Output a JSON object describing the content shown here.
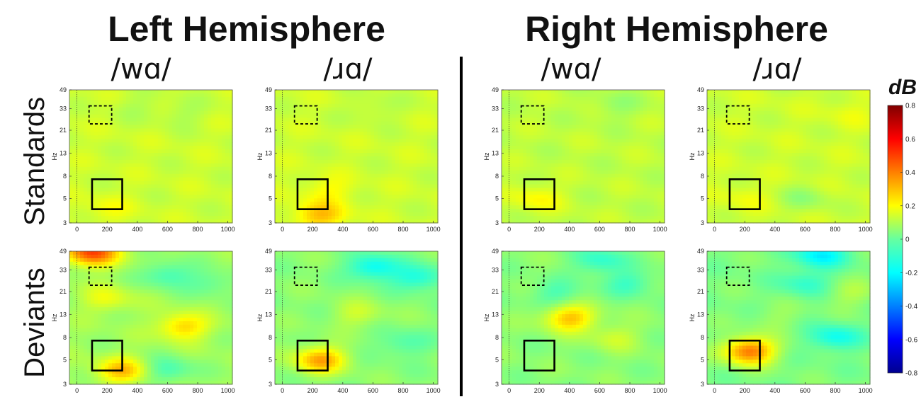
{
  "chart_data": {
    "type": "heatmap",
    "hemispheres": [
      {
        "title": "Left Hemisphere",
        "stimuli": [
          "/wɑ/",
          "/ɹɑ/"
        ]
      },
      {
        "title": "Right Hemisphere",
        "stimuli": [
          "/wɑ/",
          "/ɹɑ/"
        ]
      }
    ],
    "rows": [
      "Standards",
      "Deviants"
    ],
    "xlabel": "",
    "ylabel": "Hz",
    "x_ticks": [
      "0",
      "200",
      "400",
      "600",
      "800",
      "1000"
    ],
    "y_ticks": [
      "3",
      "5",
      "8",
      "13",
      "21",
      "33",
      "49"
    ],
    "xlim": [
      -50,
      1030
    ],
    "ylim": [
      3,
      49
    ],
    "y_scale": "log",
    "colorbar": {
      "title": "dB",
      "ticks": [
        "0.8",
        "0.6",
        "0.4",
        "0.2",
        "0",
        "-0.2",
        "-0.4",
        "-0.6",
        "-0.8"
      ],
      "range": [
        -0.8,
        0.8
      ]
    },
    "stimulus_onset_ms": 0,
    "roi_solid": {
      "x": [
        100,
        300
      ],
      "y": [
        4,
        7.5
      ]
    },
    "roi_dashed": {
      "x": [
        80,
        230
      ],
      "y": [
        24,
        35
      ]
    },
    "panels": [
      {
        "row": "Standards",
        "hemisphere": "Left Hemisphere",
        "stimulus": "/wɑ/",
        "base": 0.12,
        "blobs": [
          [
            200,
            4,
            0.06
          ],
          [
            700,
            30,
            -0.05
          ],
          [
            400,
            35,
            -0.04
          ]
        ]
      },
      {
        "row": "Standards",
        "hemisphere": "Left Hemisphere",
        "stimulus": "/ɹɑ/",
        "base": 0.12,
        "blobs": [
          [
            250,
            3.5,
            0.18
          ],
          [
            600,
            33,
            -0.05
          ],
          [
            300,
            6,
            0.08
          ]
        ]
      },
      {
        "row": "Standards",
        "hemisphere": "Right Hemisphere",
        "stimulus": "/wɑ/",
        "base": 0.1,
        "blobs": [
          [
            180,
            5,
            0.1
          ],
          [
            700,
            35,
            -0.06
          ]
        ]
      },
      {
        "row": "Standards",
        "hemisphere": "Right Hemisphere",
        "stimulus": "/ɹɑ/",
        "base": 0.12,
        "blobs": [
          [
            600,
            5,
            -0.08
          ],
          [
            200,
            5,
            0.05
          ],
          [
            900,
            30,
            0.04
          ]
        ]
      },
      {
        "row": "Deviants",
        "hemisphere": "Left Hemisphere",
        "stimulus": "/wɑ/",
        "base": 0.05,
        "blobs": [
          [
            100,
            48,
            0.45
          ],
          [
            700,
            10,
            0.22
          ],
          [
            300,
            4,
            0.25
          ],
          [
            600,
            30,
            -0.15
          ],
          [
            900,
            25,
            -0.1
          ],
          [
            200,
            18,
            0.12
          ],
          [
            600,
            4,
            -0.14
          ]
        ]
      },
      {
        "row": "Deviants",
        "hemisphere": "Left Hemisphere",
        "stimulus": "/ɹɑ/",
        "base": 0.02,
        "blobs": [
          [
            250,
            5,
            0.32
          ],
          [
            600,
            35,
            -0.22
          ],
          [
            900,
            28,
            -0.18
          ],
          [
            500,
            13,
            0.1
          ],
          [
            800,
            7,
            -0.1
          ]
        ]
      },
      {
        "row": "Deviants",
        "hemisphere": "Right Hemisphere",
        "stimulus": "/wɑ/",
        "base": 0.02,
        "blobs": [
          [
            400,
            12,
            0.28
          ],
          [
            600,
            40,
            -0.15
          ],
          [
            800,
            25,
            -0.12
          ],
          [
            300,
            20,
            -0.1
          ],
          [
            700,
            8,
            0.1
          ]
        ]
      },
      {
        "row": "Deviants",
        "hemisphere": "Right Hemisphere",
        "stimulus": "/ɹɑ/",
        "base": 0.0,
        "blobs": [
          [
            230,
            6,
            0.42
          ],
          [
            700,
            45,
            -0.22
          ],
          [
            800,
            8,
            -0.18
          ],
          [
            600,
            25,
            -0.12
          ],
          [
            900,
            20,
            0.08
          ],
          [
            400,
            12,
            0.05
          ]
        ]
      }
    ]
  }
}
